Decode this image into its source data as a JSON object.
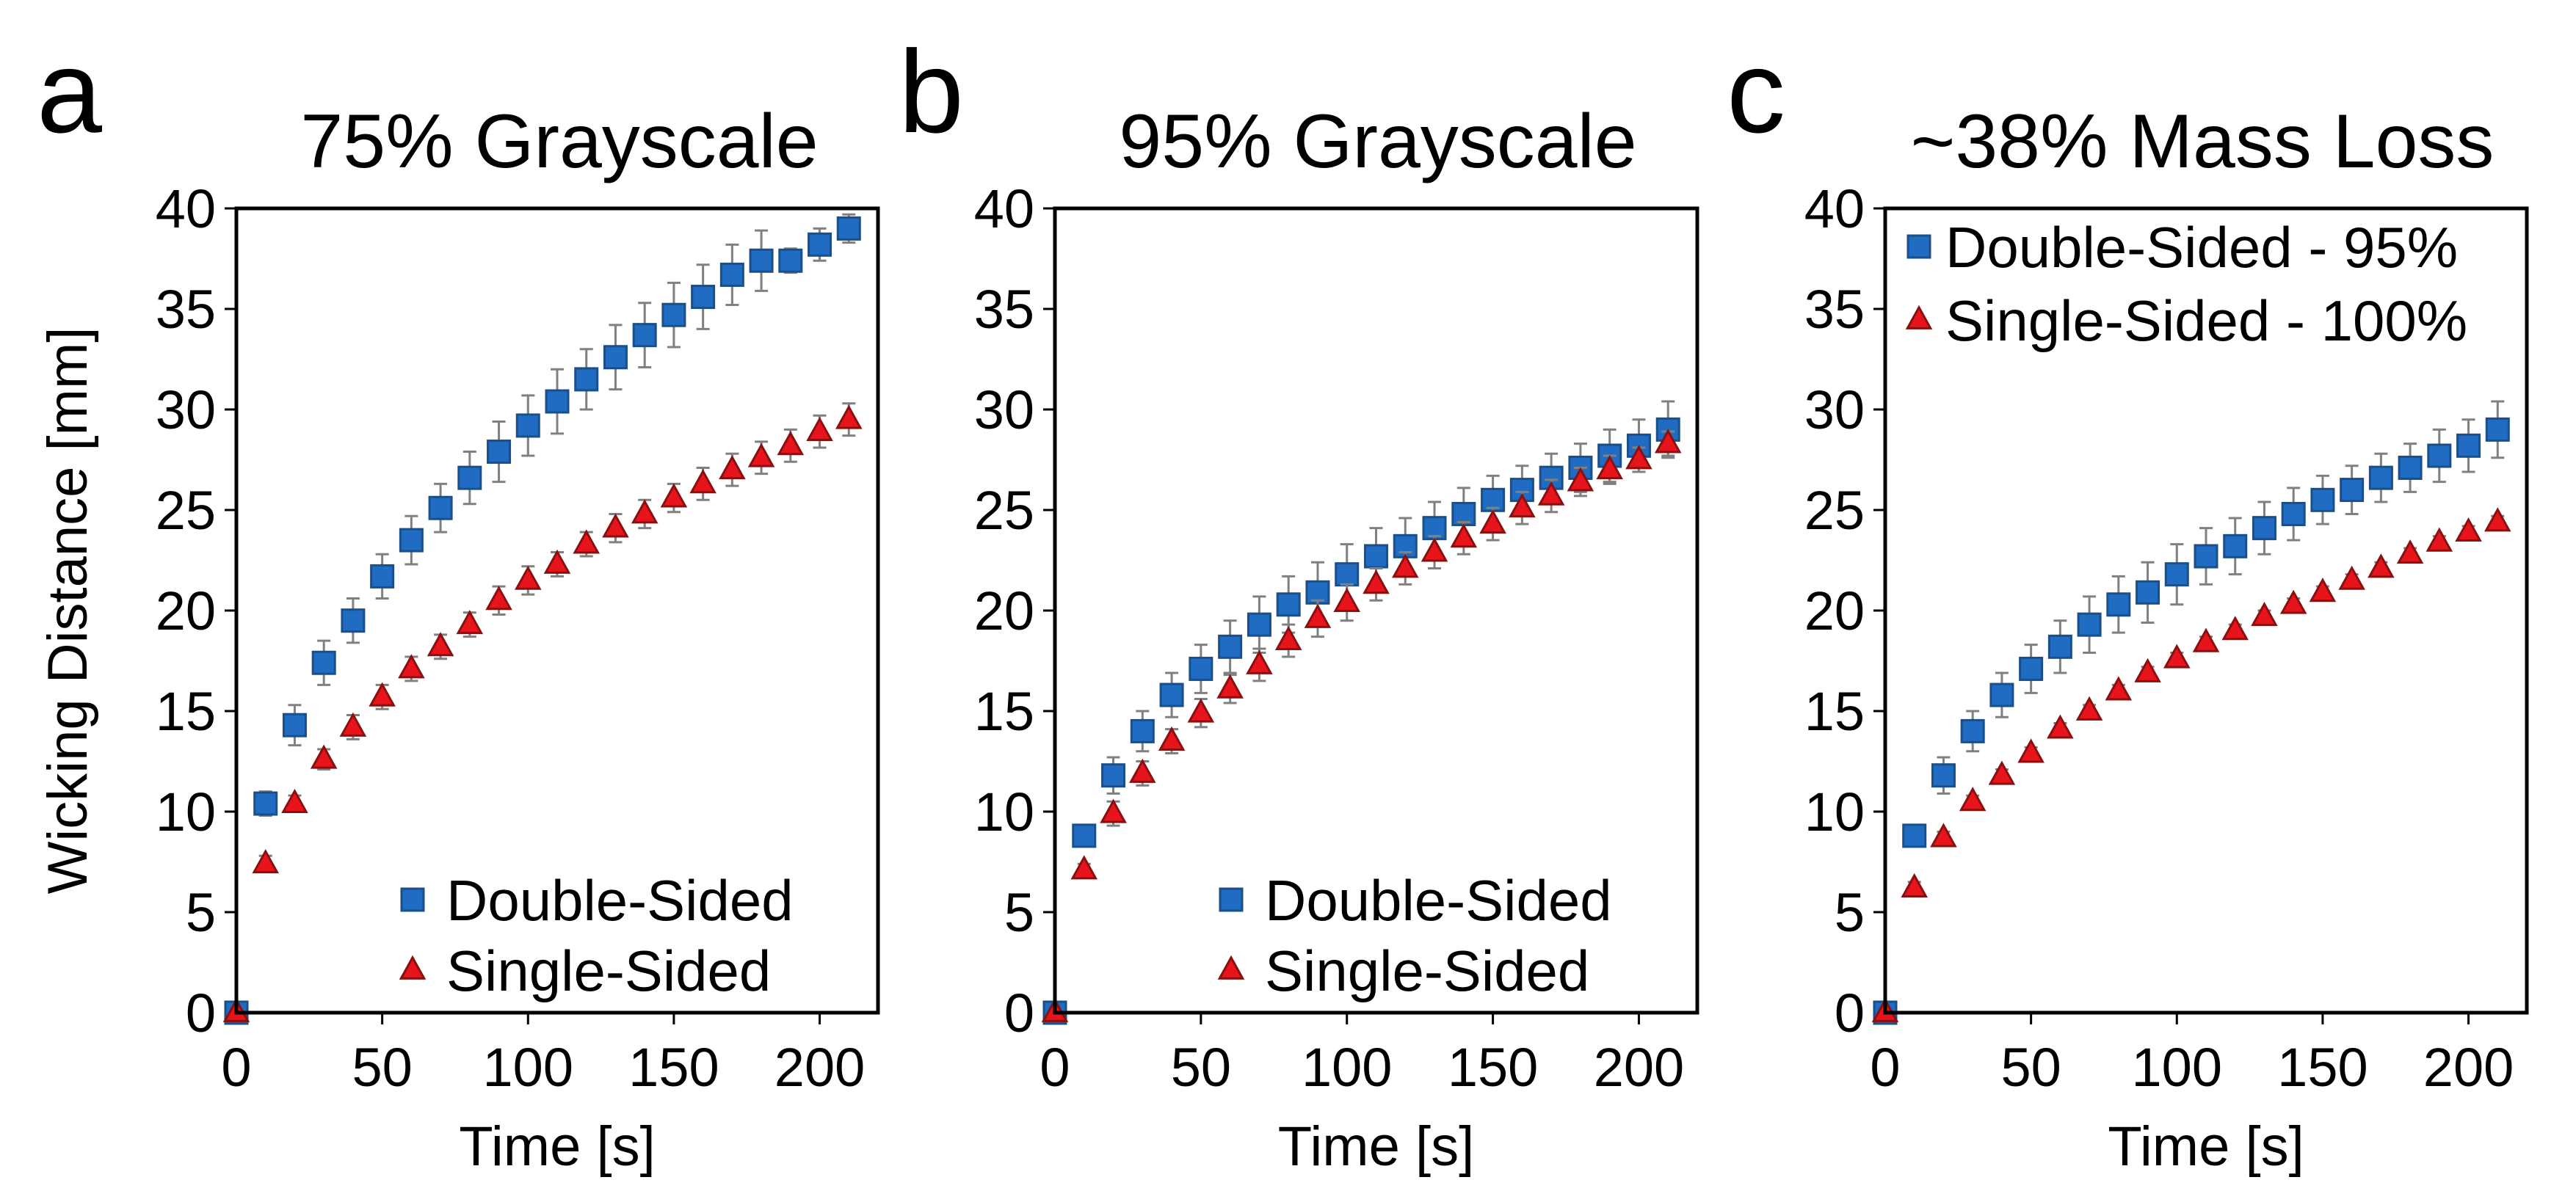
{
  "figure": {
    "y_axis_label": "Wicking Distance [mm]",
    "colors": {
      "double_fill": "#1f6cc2",
      "double_stroke": "#1a4f8a",
      "single_fill": "#e8141b",
      "single_stroke": "#8a1010",
      "errorbar": "#808080"
    }
  },
  "chart_data": [
    {
      "type": "scatter",
      "panel": "a",
      "title": "75% Grayscale",
      "xlabel": "Time [s]",
      "ylabel": "Wicking Distance [mm]",
      "xlim": [
        0,
        220
      ],
      "ylim": [
        0,
        40
      ],
      "xticks": [
        0,
        50,
        100,
        150,
        200
      ],
      "yticks": [
        0,
        5,
        10,
        15,
        20,
        25,
        30,
        35,
        40
      ],
      "legend_position": "bottom-right",
      "x": [
        0,
        10,
        20,
        30,
        40,
        50,
        60,
        70,
        80,
        90,
        100,
        110,
        120,
        130,
        140,
        150,
        160,
        170,
        180,
        190,
        200,
        210
      ],
      "series": [
        {
          "name": "Double-Sided",
          "marker": "square",
          "values": [
            0,
            10.4,
            14.3,
            17.4,
            19.5,
            21.7,
            23.5,
            25.1,
            26.6,
            27.9,
            29.2,
            30.4,
            31.5,
            32.6,
            33.7,
            34.7,
            35.6,
            36.7,
            37.4,
            37.4,
            38.2,
            39.0
          ],
          "errors": [
            0,
            0.6,
            1.0,
            1.1,
            1.1,
            1.1,
            1.2,
            1.2,
            1.3,
            1.5,
            1.5,
            1.6,
            1.5,
            1.6,
            1.6,
            1.6,
            1.6,
            1.5,
            1.5,
            0.6,
            0.8,
            0.7
          ]
        },
        {
          "name": "Single-Sided",
          "marker": "triangle",
          "values": [
            0,
            7.4,
            10.4,
            12.6,
            14.2,
            15.7,
            17.1,
            18.2,
            19.3,
            20.5,
            21.5,
            22.3,
            23.3,
            24.1,
            24.8,
            25.6,
            26.3,
            27.0,
            27.6,
            28.2,
            28.9,
            29.5
          ],
          "errors": [
            0,
            0.4,
            0.4,
            0.5,
            0.6,
            0.6,
            0.6,
            0.6,
            0.6,
            0.7,
            0.7,
            0.6,
            0.6,
            0.7,
            0.7,
            0.7,
            0.8,
            0.8,
            0.8,
            0.8,
            0.8,
            0.8
          ]
        }
      ]
    },
    {
      "type": "scatter",
      "panel": "b",
      "title": "95% Grayscale",
      "xlabel": "Time [s]",
      "ylabel": "",
      "xlim": [
        0,
        220
      ],
      "ylim": [
        0,
        40
      ],
      "xticks": [
        0,
        50,
        100,
        150,
        200
      ],
      "yticks": [
        0,
        5,
        10,
        15,
        20,
        25,
        30,
        35,
        40
      ],
      "legend_position": "bottom-right",
      "x": [
        0,
        10,
        20,
        30,
        40,
        50,
        60,
        70,
        80,
        90,
        100,
        110,
        120,
        130,
        140,
        150,
        160,
        170,
        180,
        190,
        200,
        210
      ],
      "series": [
        {
          "name": "Double-Sided",
          "marker": "square",
          "values": [
            0,
            8.8,
            11.8,
            14.0,
            15.8,
            17.1,
            18.2,
            19.3,
            20.3,
            20.9,
            21.8,
            22.7,
            23.2,
            24.1,
            24.8,
            25.5,
            26.0,
            26.6,
            27.1,
            27.7,
            28.2,
            29.0
          ],
          "errors": [
            0,
            0.3,
            0.9,
            1.0,
            1.1,
            1.2,
            1.3,
            1.4,
            1.4,
            1.5,
            1.5,
            1.4,
            1.4,
            1.3,
            1.3,
            1.2,
            1.2,
            1.2,
            1.2,
            1.3,
            1.3,
            1.4
          ]
        },
        {
          "name": "Single-Sided",
          "marker": "triangle",
          "values": [
            0,
            7.1,
            9.9,
            11.9,
            13.5,
            14.9,
            16.1,
            17.3,
            18.5,
            19.6,
            20.4,
            21.3,
            22.1,
            22.9,
            23.6,
            24.3,
            25.1,
            25.7,
            26.4,
            27.0,
            27.5,
            28.3
          ],
          "errors": [
            0,
            0.3,
            0.6,
            0.6,
            0.6,
            0.7,
            0.7,
            0.8,
            0.8,
            0.9,
            0.9,
            0.8,
            0.8,
            0.8,
            0.8,
            0.8,
            0.8,
            0.8,
            0.7,
            0.7,
            0.6,
            0.6
          ]
        }
      ]
    },
    {
      "type": "scatter",
      "panel": "c",
      "title": "~38% Mass Loss",
      "xlabel": "Time [s]",
      "ylabel": "",
      "xlim": [
        0,
        220
      ],
      "ylim": [
        0,
        40
      ],
      "xticks": [
        0,
        50,
        100,
        150,
        200
      ],
      "yticks": [
        0,
        5,
        10,
        15,
        20,
        25,
        30,
        35,
        40
      ],
      "legend_position": "top-left",
      "x": [
        0,
        10,
        20,
        30,
        40,
        50,
        60,
        70,
        80,
        90,
        100,
        110,
        120,
        130,
        140,
        150,
        160,
        170,
        180,
        190,
        200,
        210
      ],
      "series": [
        {
          "name": "Double-Sided - 95%",
          "marker": "square",
          "values": [
            0,
            8.8,
            11.8,
            14.0,
            15.8,
            17.1,
            18.2,
            19.3,
            20.3,
            20.9,
            21.8,
            22.7,
            23.2,
            24.1,
            24.8,
            25.5,
            26.0,
            26.6,
            27.1,
            27.7,
            28.2,
            29.0
          ],
          "errors": [
            0,
            0.3,
            0.9,
            1.0,
            1.1,
            1.2,
            1.3,
            1.4,
            1.4,
            1.5,
            1.5,
            1.4,
            1.4,
            1.3,
            1.3,
            1.2,
            1.2,
            1.2,
            1.2,
            1.3,
            1.3,
            1.4
          ]
        },
        {
          "name": "Single-Sided - 100%",
          "marker": "triangle",
          "values": [
            0,
            6.2,
            8.7,
            10.5,
            11.8,
            12.9,
            14.1,
            15.0,
            16.0,
            16.9,
            17.6,
            18.4,
            19.0,
            19.7,
            20.3,
            20.9,
            21.5,
            22.1,
            22.8,
            23.4,
            23.9,
            24.4
          ],
          "errors": [
            0,
            0.3,
            0.3,
            0.3,
            0.3,
            0.3,
            0.3,
            0.3,
            0.3,
            0.3,
            0.3,
            0.3,
            0.3,
            0.3,
            0.3,
            0.3,
            0.3,
            0.3,
            0.3,
            0.3,
            0.3,
            0.3
          ]
        }
      ]
    }
  ]
}
